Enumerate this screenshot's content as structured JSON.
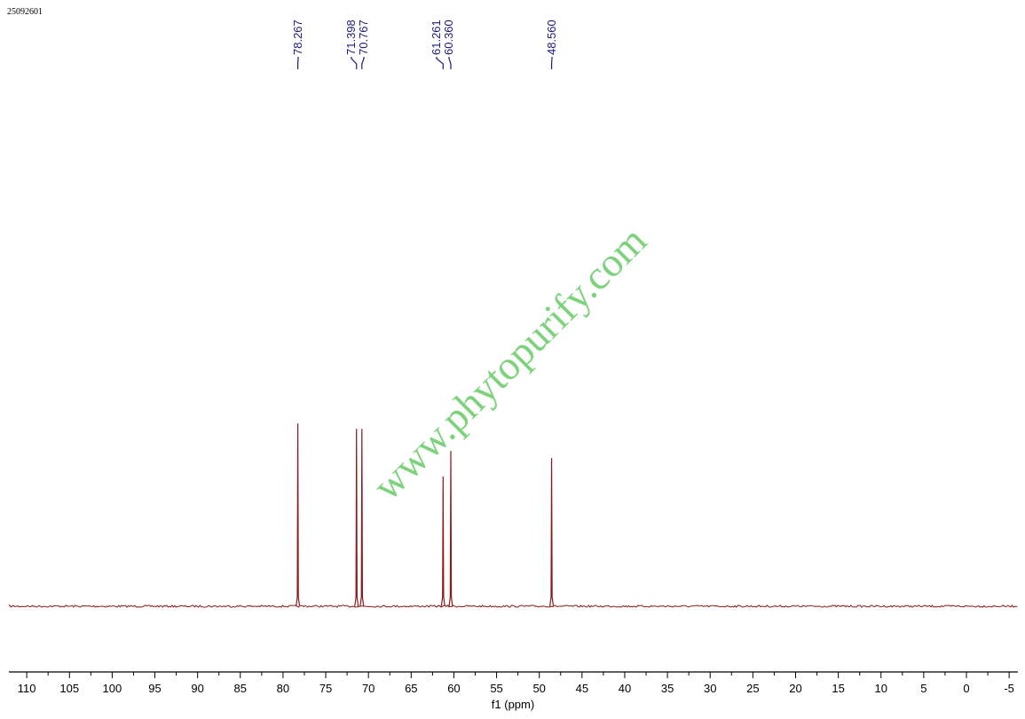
{
  "sample_id": "25092601",
  "watermark": "www.phytopurify.com",
  "chart_data": {
    "type": "line",
    "title": "",
    "xlabel": "f1 (ppm)",
    "ylabel": "",
    "xlim": [
      112,
      -6
    ],
    "x_reversed": true,
    "grid": false,
    "x_ticks": [
      110,
      105,
      100,
      95,
      90,
      85,
      80,
      75,
      70,
      65,
      60,
      55,
      50,
      45,
      40,
      35,
      30,
      25,
      20,
      15,
      10,
      5,
      0,
      -5
    ],
    "peaks": [
      {
        "ppm": 78.267,
        "label": "78.267",
        "rel_height": 1.0
      },
      {
        "ppm": 71.398,
        "label": "71.398",
        "rel_height": 0.97
      },
      {
        "ppm": 70.767,
        "label": "70.767",
        "rel_height": 0.97
      },
      {
        "ppm": 61.261,
        "label": "61.261",
        "rel_height": 0.71
      },
      {
        "ppm": 60.36,
        "label": "60.360",
        "rel_height": 0.85
      },
      {
        "ppm": 48.56,
        "label": "48.560",
        "rel_height": 0.81
      }
    ],
    "colors": {
      "spectrum": "#8b1a1a",
      "peak_labels": "#1a1a7a",
      "axis": "#000000",
      "watermark": "#66cc66"
    }
  }
}
